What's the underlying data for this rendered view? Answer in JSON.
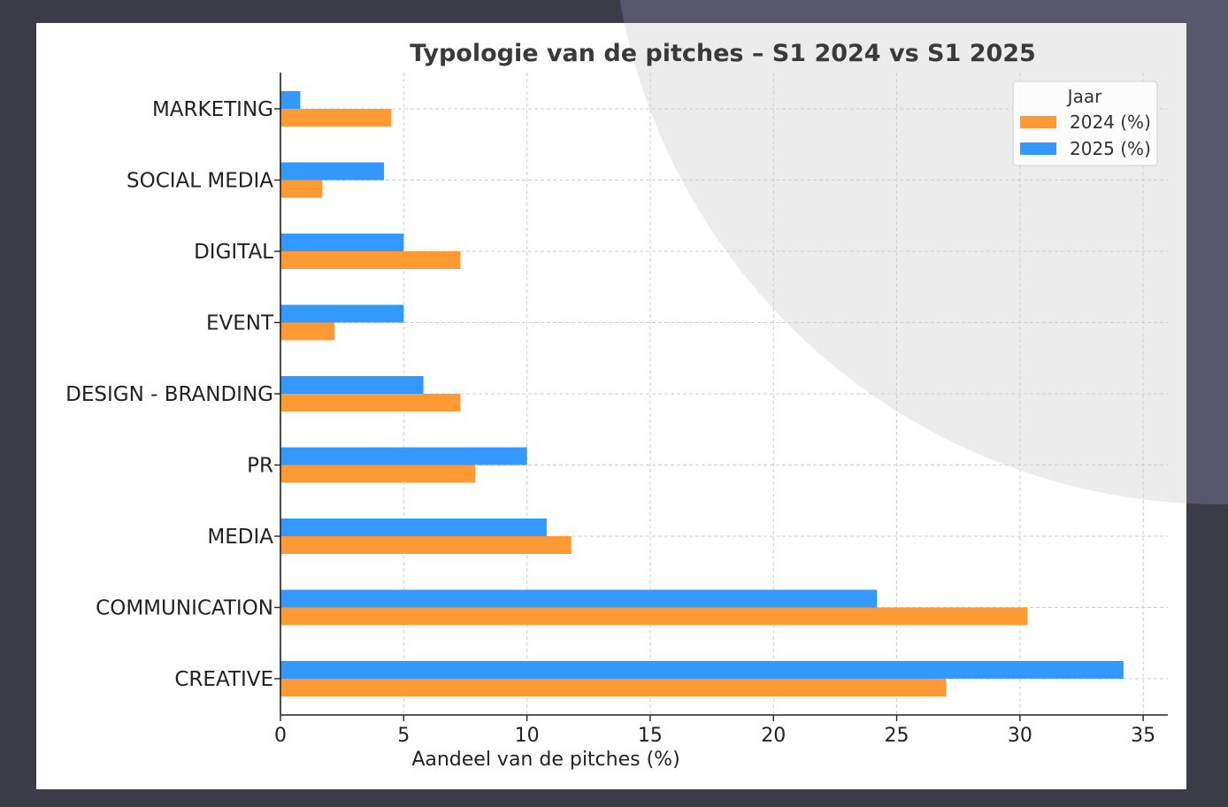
{
  "chart_data": {
    "type": "bar",
    "orientation": "horizontal",
    "title": "Typologie van de pitches – S1 2024 vs S1 2025",
    "xlabel": "Aandeel van de pitches (%)",
    "ylabel": "",
    "xlim": [
      0,
      36
    ],
    "xticks": [
      0,
      5,
      10,
      15,
      20,
      25,
      30,
      35
    ],
    "grid": true,
    "categories": [
      "MARKETING",
      "SOCIAL MEDIA",
      "DIGITAL",
      "EVENT",
      "DESIGN - BRANDING",
      "PR",
      "MEDIA",
      "COMMUNICATION",
      "CREATIVE"
    ],
    "legend": {
      "title": "Jaar",
      "placement": "top-right"
    },
    "series": [
      {
        "name": "2024 (%)",
        "color": "#ff9933",
        "values": [
          4.5,
          1.7,
          7.3,
          2.2,
          7.3,
          7.9,
          11.8,
          30.3,
          27.0
        ]
      },
      {
        "name": "2025 (%)",
        "color": "#3399ff",
        "values": [
          0.8,
          4.2,
          5.0,
          5.0,
          5.8,
          10.0,
          10.8,
          24.2,
          34.2
        ]
      }
    ]
  }
}
